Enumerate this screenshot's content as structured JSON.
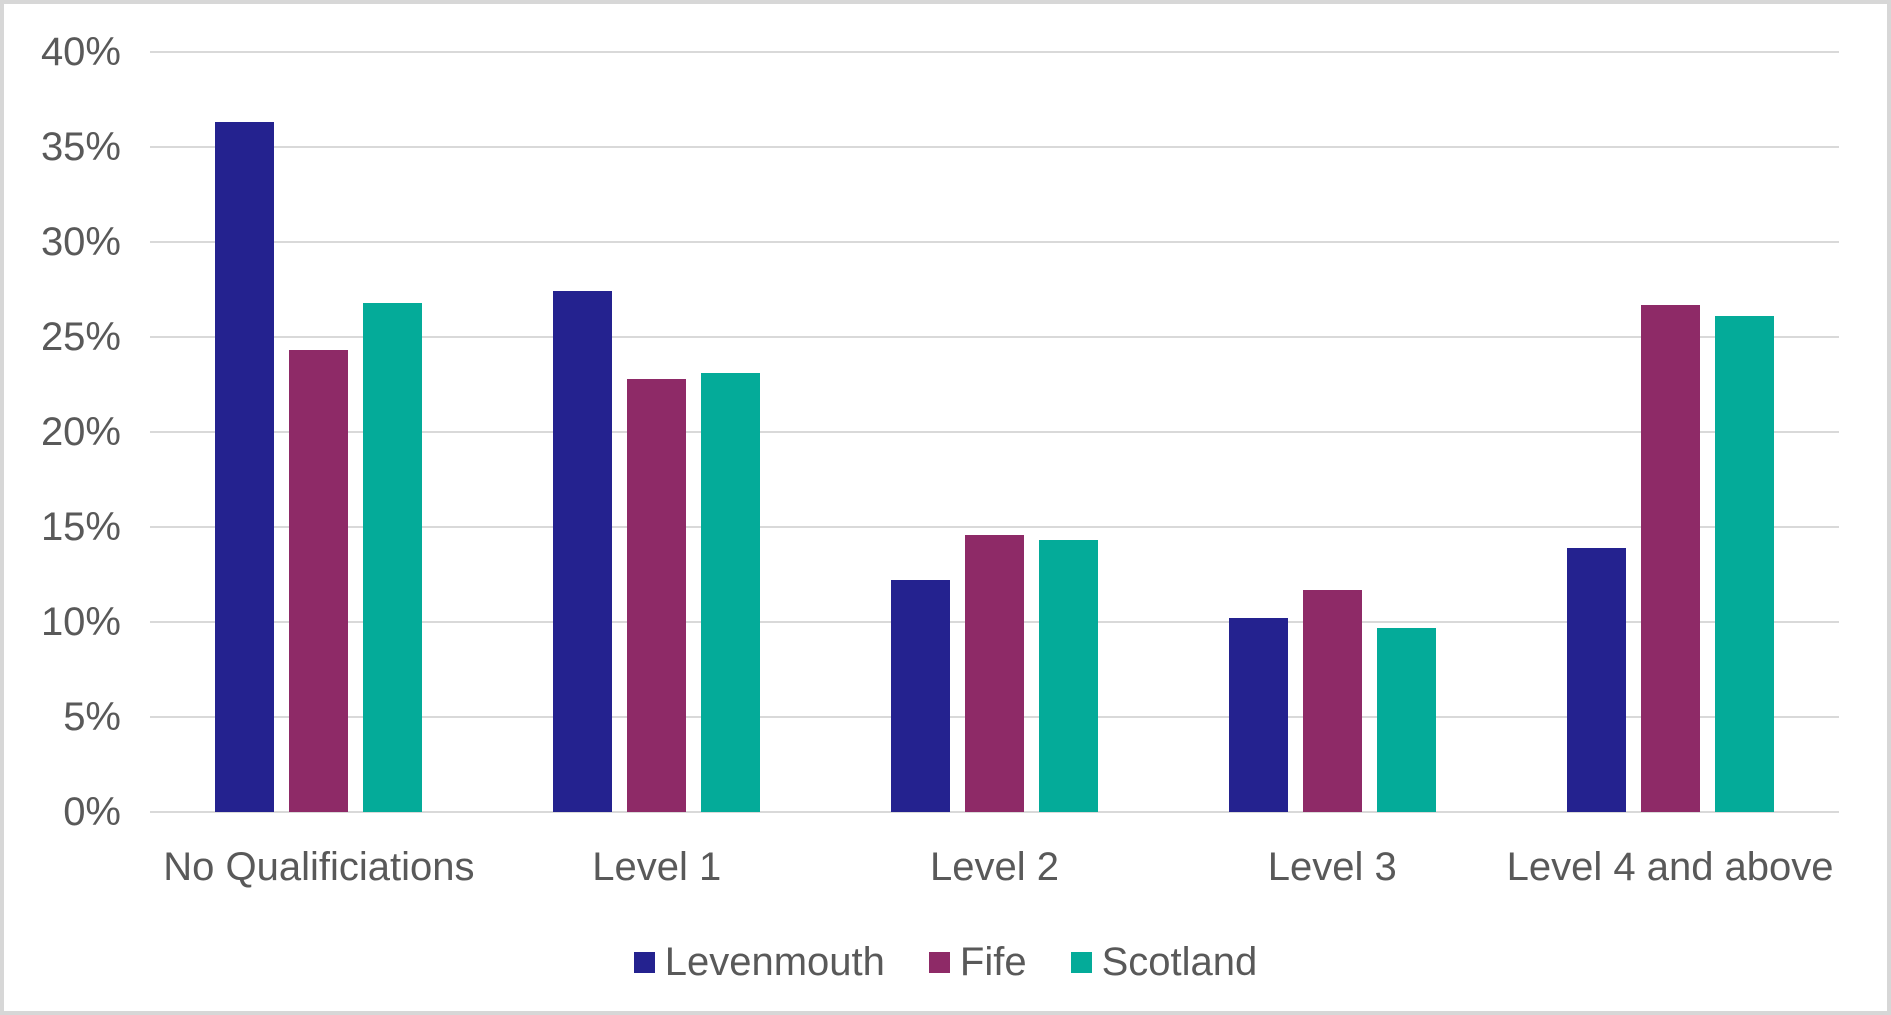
{
  "chart_data": {
    "type": "bar",
    "title": "",
    "xlabel": "",
    "ylabel": "",
    "categories": [
      "No Qualificiations",
      "Level 1",
      "Level 2",
      "Level 3",
      "Level 4 and above"
    ],
    "series": [
      {
        "name": "Levenmouth",
        "color": "#24228F",
        "values": [
          36.3,
          27.4,
          12.2,
          10.2,
          13.9
        ]
      },
      {
        "name": "Fife",
        "color": "#8E2A67",
        "values": [
          24.3,
          22.8,
          14.6,
          11.7,
          26.7
        ]
      },
      {
        "name": "Scotland",
        "color": "#04AB99",
        "values": [
          26.8,
          23.1,
          14.3,
          9.7,
          26.1
        ]
      }
    ],
    "ylim": [
      0,
      40
    ],
    "yticks": [
      0,
      5,
      10,
      15,
      20,
      25,
      30,
      35,
      40
    ],
    "ytick_labels": [
      "0%",
      "5%",
      "10%",
      "15%",
      "20%",
      "25%",
      "30%",
      "35%",
      "40%"
    ],
    "grid": true,
    "legend_position": "bottom"
  },
  "colors": {
    "background": "#FFFFFF",
    "border": "#D7D7D7",
    "gridline": "#D9D9D9",
    "axis_text": "#595959"
  }
}
